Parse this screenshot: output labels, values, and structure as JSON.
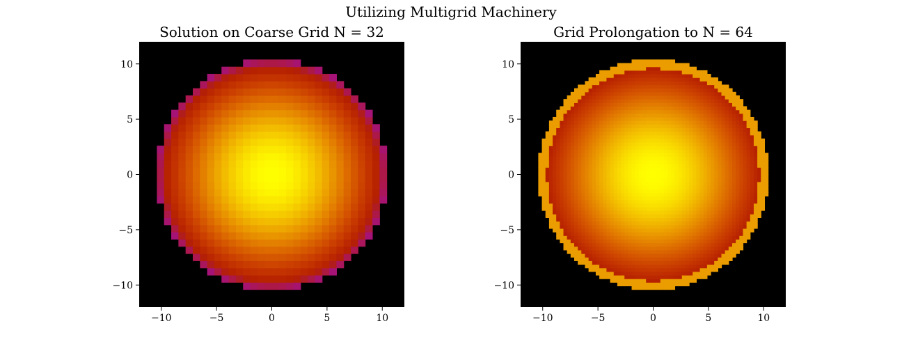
{
  "figure_title": "Utilizing Multigrid Machinery",
  "chart_data": [
    {
      "type": "heatmap",
      "title": "Solution on Coarse Grid N = 32",
      "grid_n": 32,
      "colormap": "gnuplot",
      "xlim": [
        -12,
        12
      ],
      "ylim": [
        -12,
        12
      ],
      "xticks": [
        -10,
        -5,
        0,
        5,
        10
      ],
      "yticks": [
        -10,
        -5,
        0,
        5,
        10
      ],
      "xtick_labels": [
        "−10",
        "−5",
        "0",
        "5",
        "10"
      ],
      "ytick_labels": [
        "−10",
        "−5",
        "0",
        "5",
        "10"
      ],
      "field": "smooth radial solution, peak at center (bright yellow), falling to violet near radius 10, zero (black) outside disk",
      "disk_radius": 10.4,
      "peak_value": 1.0,
      "edge_value": 0.42
    },
    {
      "type": "heatmap",
      "title": "Grid Prolongation to N = 64",
      "grid_n": 64,
      "colormap": "gnuplot",
      "xlim": [
        -12,
        12
      ],
      "ylim": [
        -12,
        12
      ],
      "xticks": [
        -10,
        -5,
        0,
        5,
        10
      ],
      "yticks": [
        -10,
        -5,
        0,
        5,
        10
      ],
      "xtick_labels": [
        "−10",
        "−5",
        "0",
        "5",
        "10"
      ],
      "ytick_labels": [
        "−10",
        "−5",
        "0",
        "5",
        "10"
      ],
      "field": "prolongated solution on finer grid with an orange boundary ring artifact",
      "disk_radius": 10.4,
      "ring_inner_radius": 9.6,
      "ring_value": 0.85,
      "peak_value": 1.0,
      "edge_value": 0.42
    }
  ]
}
